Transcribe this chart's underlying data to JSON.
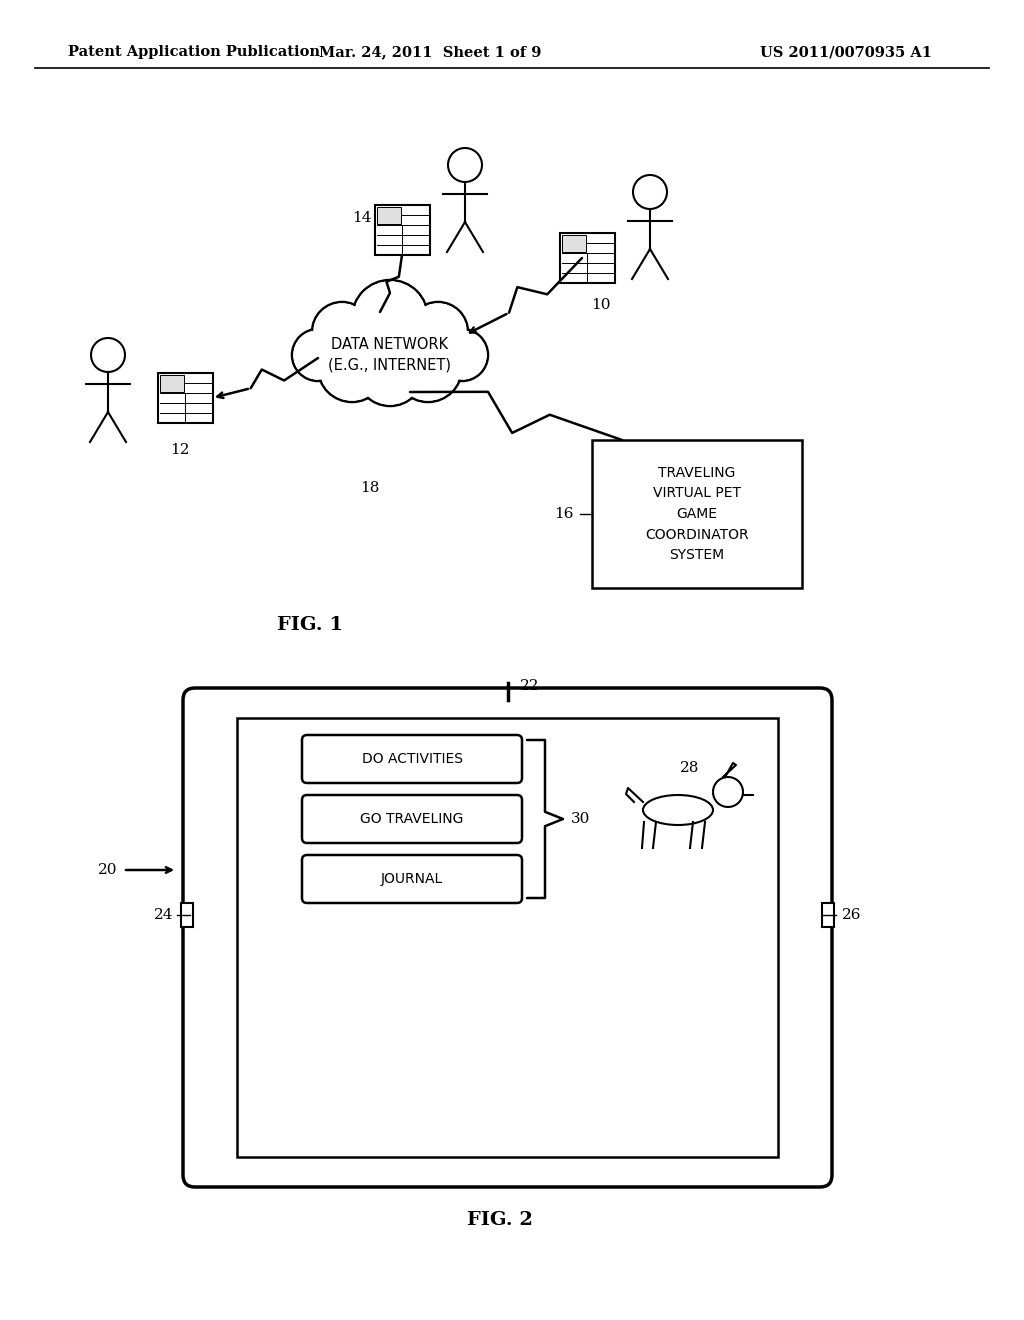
{
  "header_left": "Patent Application Publication",
  "header_mid": "Mar. 24, 2011  Sheet 1 of 9",
  "header_right": "US 2011/0070935 A1",
  "fig1_label": "FIG. 1",
  "fig2_label": "FIG. 2",
  "cloud_text": "DATA NETWORK\n(E.G., INTERNET)",
  "box_text": "TRAVELING\nVIRTUAL PET\nGAME\nCOORDINATOR\nSYSTEM",
  "label_10": "10",
  "label_12": "12",
  "label_14": "14",
  "label_16": "16",
  "label_18": "18",
  "label_20": "20",
  "label_22": "22",
  "label_24": "24",
  "label_26": "26",
  "label_28": "28",
  "label_30": "30",
  "btn_1": "DO ACTIVITIES",
  "btn_2": "GO TRAVELING",
  "btn_3": "JOURNAL",
  "bg_color": "#ffffff",
  "line_color": "#000000",
  "text_color": "#000000"
}
